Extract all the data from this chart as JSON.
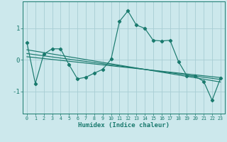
{
  "xlabel": "Humidex (Indice chaleur)",
  "bg_color": "#cce8ec",
  "line_color": "#1a7a6e",
  "grid_color": "#a8cdd4",
  "xlim": [
    -0.5,
    23.5
  ],
  "ylim": [
    -1.7,
    1.85
  ],
  "yticks": [
    -1,
    0,
    1
  ],
  "ytick_labels": [
    "-1",
    "0",
    "1"
  ],
  "xticks": [
    0,
    1,
    2,
    3,
    4,
    5,
    6,
    7,
    8,
    9,
    10,
    11,
    12,
    13,
    14,
    15,
    16,
    17,
    18,
    19,
    20,
    21,
    22,
    23
  ],
  "main_x": [
    0,
    1,
    2,
    3,
    4,
    5,
    6,
    7,
    8,
    9,
    10,
    11,
    12,
    13,
    14,
    15,
    16,
    17,
    18,
    19,
    20,
    21,
    22,
    23
  ],
  "main_y": [
    0.55,
    -0.75,
    0.18,
    0.35,
    0.35,
    -0.15,
    -0.6,
    -0.55,
    -0.42,
    -0.3,
    0.02,
    1.22,
    1.55,
    1.1,
    1.0,
    0.62,
    0.6,
    0.62,
    -0.05,
    -0.5,
    -0.52,
    -0.68,
    -1.28,
    -0.58
  ],
  "reg_lines": [
    {
      "x0": 0,
      "y0": 0.32,
      "x1": 23,
      "y1": -0.7
    },
    {
      "x0": 0,
      "y0": 0.2,
      "x1": 23,
      "y1": -0.62
    },
    {
      "x0": 0,
      "y0": 0.1,
      "x1": 23,
      "y1": -0.56
    }
  ]
}
